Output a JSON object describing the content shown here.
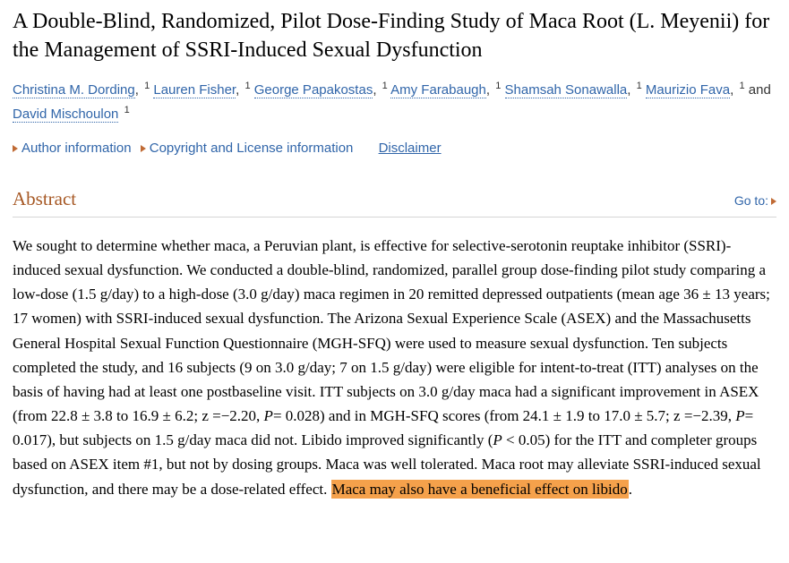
{
  "title": "A Double-Blind, Randomized, Pilot Dose-Finding Study of Maca Root (L. Meyenii) for the Management of SSRI-Induced Sexual Dysfunction",
  "authors": [
    {
      "name": "Christina M. Dording",
      "aff": "1"
    },
    {
      "name": "Lauren Fisher",
      "aff": "1"
    },
    {
      "name": "George Papakostas",
      "aff": "1"
    },
    {
      "name": "Amy Farabaugh",
      "aff": "1"
    },
    {
      "name": "Shamsah Sonawalla",
      "aff": "1"
    },
    {
      "name": "Maurizio Fava",
      "aff": "1"
    },
    {
      "name": "David Mischoulon",
      "aff": "1"
    }
  ],
  "author_joiner": "and ",
  "info": {
    "author_info": "Author information",
    "copyright": "Copyright and License information",
    "disclaimer": "Disclaimer"
  },
  "section": {
    "abstract_label": "Abstract",
    "goto": "Go to:"
  },
  "abstract": {
    "part1": "We sought to determine whether maca, a Peruvian plant, is effective for selective-serotonin reuptake inhibitor (SSRI)-induced sexual dysfunction. We conducted a double-blind, randomized, parallel group dose-finding pilot study comparing a low-dose (1.5 g/day) to a high-dose (3.0 g/day) maca regimen in 20 remitted depressed outpatients (mean age 36 ± 13 years; 17 women) with SSRI-induced sexual dysfunction. The Arizona Sexual Experience Scale (ASEX) and the Massachusetts General Hospital Sexual Function Questionnaire (MGH-SFQ) were used to measure sexual dysfunction. Ten subjects completed the study, and 16 subjects (9 on 3.0 g/day; 7 on 1.5 g/day) were eligible for intent-to-treat (ITT) analyses on the basis of having had at least one postbaseline visit. ITT subjects on 3.0 g/day maca had a significant improvement in ASEX (from 22.8 ± 3.8 to 16.9 ± 6.2; z =−2.20, ",
    "p1_label": "P",
    "p1_value": "= 0.028) and in MGH-SFQ scores (from 24.1 ± 1.9 to 17.0 ± 5.7; z =−2.39, ",
    "p2_label": "P",
    "p2_value": "= 0.017), but subjects on 1.5 g/day maca did not. Libido improved significantly (",
    "p3_label": "P",
    "p3_value": " < 0.05) for the ITT and completer groups based on ASEX item #1, but not by dosing groups. Maca was well tolerated. Maca root may alleviate SSRI-induced sexual dysfunction, and there may be a dose-related effect. ",
    "highlight": "Maca may also have a beneficial effect on libido",
    "tail": "."
  },
  "colors": {
    "link": "#3065a9",
    "section_title": "#a65824",
    "marker": "#c06a34",
    "highlight_bg": "#f5a14b"
  }
}
